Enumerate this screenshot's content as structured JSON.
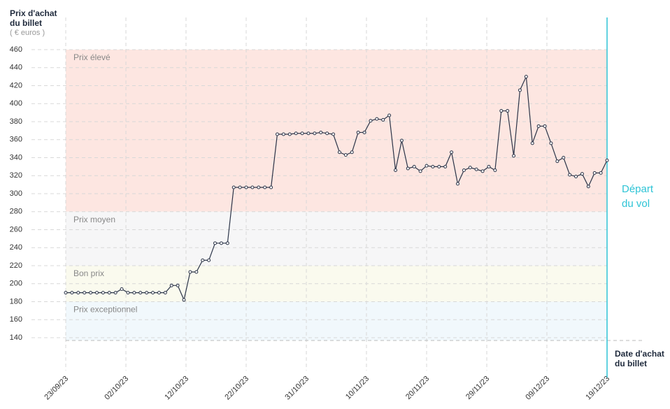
{
  "chart_data": {
    "type": "line",
    "y_title": "Prix d'achat du billet",
    "y_unit": "( € euros )",
    "x_title": "Date d'achat du billet",
    "x": [
      0,
      1,
      2,
      3,
      4,
      5,
      6,
      7,
      8,
      9,
      10,
      11,
      12,
      13,
      14,
      15,
      16,
      17,
      18,
      19,
      20,
      21,
      22,
      23,
      24,
      25,
      26,
      27,
      28,
      29,
      30,
      31,
      32,
      33,
      34,
      35,
      36,
      37,
      38,
      39,
      40,
      41,
      42,
      43,
      44,
      45,
      46,
      47,
      48,
      49,
      50,
      51,
      52,
      53,
      54,
      55,
      56,
      57,
      58,
      59,
      60,
      61,
      62,
      63,
      64,
      65,
      66,
      67,
      68,
      69,
      70,
      71,
      72,
      73,
      74,
      75,
      76,
      77,
      78,
      79,
      80,
      81,
      82,
      83,
      84,
      85,
      86,
      87
    ],
    "series": [
      {
        "color": "#2b3448",
        "values": [
          190,
          190,
          190,
          190,
          190,
          190,
          190,
          190,
          190,
          194,
          190,
          190,
          190,
          190,
          190,
          190,
          190,
          198,
          198,
          182,
          213,
          213,
          226,
          226,
          245,
          245,
          245,
          307,
          307,
          307,
          307,
          307,
          307,
          307,
          366,
          366,
          366,
          367,
          367,
          367,
          367,
          368,
          367,
          366,
          346,
          343,
          346,
          368,
          368,
          381,
          383,
          382,
          387,
          326,
          359,
          328,
          330,
          325,
          331,
          330,
          330,
          330,
          346,
          311,
          326,
          329,
          327,
          325,
          330,
          326,
          392,
          392,
          342,
          415,
          430,
          356,
          375,
          375,
          356,
          336,
          340,
          321,
          319,
          322,
          308,
          323,
          323,
          337
        ]
      }
    ],
    "xlim": [
      0,
      87
    ],
    "xticks": [
      {
        "value": 0,
        "label": "23/09/23"
      },
      {
        "value": 9.67,
        "label": "02/10/23"
      },
      {
        "value": 19.33,
        "label": "12/10/23"
      },
      {
        "value": 29,
        "label": "22/10/23"
      },
      {
        "value": 38.67,
        "label": "31/10/23"
      },
      {
        "value": 48.33,
        "label": "10/11/23"
      },
      {
        "value": 58,
        "label": "20/11/23"
      },
      {
        "value": 67.67,
        "label": "29/11/23"
      },
      {
        "value": 77.33,
        "label": "09/12/23"
      },
      {
        "value": 87,
        "label": "19/12/23"
      }
    ],
    "ylim": [
      137,
      460
    ],
    "yticks": [
      140,
      160,
      180,
      200,
      220,
      240,
      260,
      280,
      300,
      320,
      340,
      360,
      380,
      400,
      420,
      440,
      460
    ],
    "grid": true,
    "bands": [
      {
        "label": "Prix élevé",
        "from": 280,
        "to": 460,
        "color": "#fde6e1"
      },
      {
        "label": "Prix moyen",
        "from": 220,
        "to": 280,
        "color": "#f6f6f7"
      },
      {
        "label": "Bon prix",
        "from": 180,
        "to": 220,
        "color": "#fafaee"
      },
      {
        "label": "Prix exceptionnel",
        "from": 137,
        "to": 180,
        "color": "#f1f8fc"
      }
    ],
    "departure": {
      "label": "Départ du vol",
      "x": 87,
      "color": "#2ec4d6"
    }
  }
}
